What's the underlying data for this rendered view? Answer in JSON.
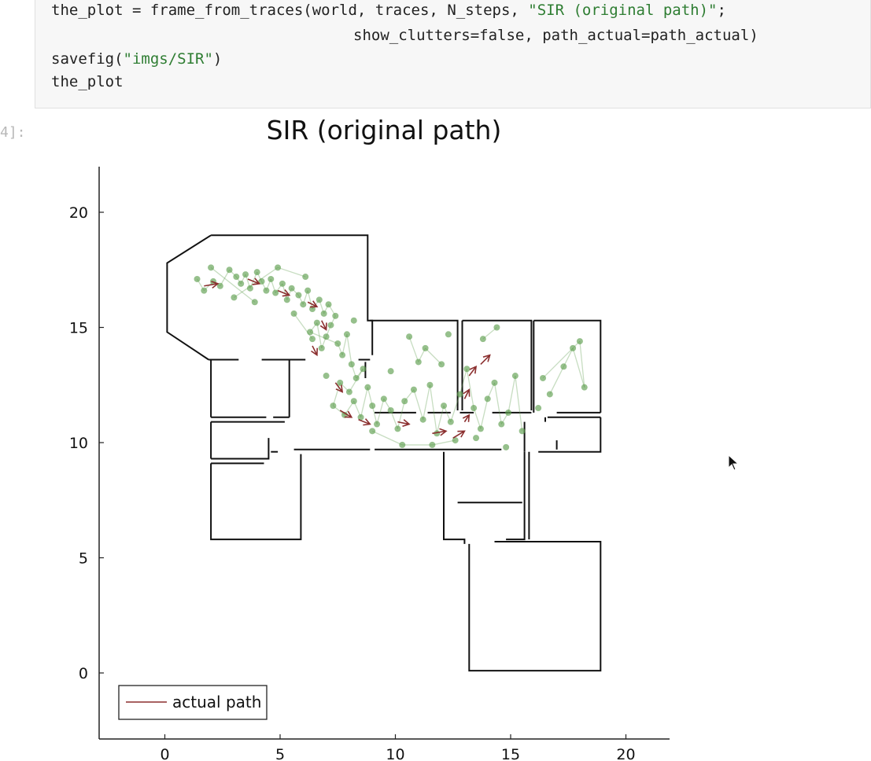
{
  "code": {
    "line1_pre": "the_plot = frame_from_traces(world, traces, N_steps, ",
    "line1_str": "\"SIR (original path)\"",
    "line1_post": ";",
    "line2": "show_clutters=false, path_actual=path_actual)",
    "line3_pre": "savefig(",
    "line3_str": "\"imgs/SIR\"",
    "line3_post": ")",
    "line4": "the_plot"
  },
  "output_prompt": "4]:",
  "colors": {
    "background": "#ffffff",
    "code_bg": "#f7f7f7",
    "string": "#2e7d32",
    "walls": "#111111",
    "particles": "#5e9e4e",
    "path": "#8b2f2f"
  },
  "chart_data": {
    "type": "scatter",
    "title": "SIR (original path)",
    "xlim": [
      -3,
      22
    ],
    "ylim": [
      -2.8,
      22
    ],
    "xticks": [
      "0",
      "5",
      "10",
      "15",
      "20"
    ],
    "yticks": [
      "0",
      "5",
      "10",
      "15",
      "20"
    ],
    "grid": false,
    "legend": {
      "position": "bottom-left",
      "entries": [
        "actual path"
      ]
    },
    "walls": [
      [
        [
          2,
          19
        ],
        [
          8.8,
          19
        ],
        [
          8.8,
          15.3
        ],
        [
          9.0,
          15.3
        ],
        [
          9.0,
          13.8
        ]
      ],
      [
        [
          2,
          19
        ],
        [
          0.1,
          17.8
        ],
        [
          0.1,
          14.8
        ],
        [
          1.9,
          13.6
        ]
      ],
      [
        [
          1.9,
          13.6
        ],
        [
          3.2,
          13.6
        ]
      ],
      [
        [
          4.2,
          13.6
        ],
        [
          6.1,
          13.6
        ]
      ],
      [
        [
          8.4,
          13.6
        ],
        [
          8.9,
          13.6
        ]
      ],
      [
        [
          2,
          13.6
        ],
        [
          2,
          11.1
        ]
      ],
      [
        [
          2,
          11.1
        ],
        [
          4.4,
          11.1
        ]
      ],
      [
        [
          4.7,
          11.1
        ],
        [
          5.4,
          11.1
        ]
      ],
      [
        [
          5.4,
          13.6
        ],
        [
          5.4,
          11.1
        ]
      ],
      [
        [
          2,
          10.9
        ],
        [
          5.2,
          10.9
        ]
      ],
      [
        [
          2,
          10.9
        ],
        [
          2,
          9.3
        ]
      ],
      [
        [
          2,
          9.3
        ],
        [
          4.5,
          9.3
        ],
        [
          4.5,
          10.2
        ]
      ],
      [
        [
          4.6,
          9.6
        ],
        [
          4.9,
          9.6
        ]
      ],
      [
        [
          2,
          9.1
        ],
        [
          2,
          5.8
        ],
        [
          5.9,
          5.8
        ],
        [
          5.9,
          9.5
        ]
      ],
      [
        [
          2,
          9.1
        ],
        [
          4.3,
          9.1
        ]
      ],
      [
        [
          5.6,
          9.7
        ],
        [
          8.9,
          9.7
        ]
      ],
      [
        [
          9.1,
          9.7
        ],
        [
          14.6,
          9.7
        ]
      ],
      [
        [
          8.7,
          13.5
        ],
        [
          8.7,
          12.8
        ]
      ],
      [
        [
          8.9,
          15.3
        ],
        [
          12.7,
          15.3
        ],
        [
          12.7,
          11.4
        ]
      ],
      [
        [
          9.1,
          11.3
        ],
        [
          10.9,
          11.3
        ]
      ],
      [
        [
          11.4,
          11.3
        ],
        [
          12.4,
          11.3
        ]
      ],
      [
        [
          12.9,
          15.3
        ],
        [
          15.9,
          15.3
        ],
        [
          15.9,
          11.4
        ]
      ],
      [
        [
          12.9,
          15.3
        ],
        [
          12.9,
          11.4
        ]
      ],
      [
        [
          12.8,
          11.3
        ],
        [
          13.4,
          11.3
        ]
      ],
      [
        [
          14.2,
          11.3
        ],
        [
          15.9,
          11.3
        ]
      ],
      [
        [
          16.0,
          15.3
        ],
        [
          18.9,
          15.3
        ],
        [
          18.9,
          11.3
        ]
      ],
      [
        [
          16.0,
          15.3
        ],
        [
          16.0,
          11.3
        ]
      ],
      [
        [
          17.0,
          11.3
        ],
        [
          18.9,
          11.3
        ]
      ],
      [
        [
          16.6,
          11.1
        ],
        [
          18.9,
          11.1
        ]
      ],
      [
        [
          16.5,
          11.1
        ],
        [
          16.5,
          10.9
        ]
      ],
      [
        [
          15.6,
          10.9
        ],
        [
          15.6,
          9.6
        ]
      ],
      [
        [
          12.1,
          9.6
        ],
        [
          12.1,
          5.8
        ],
        [
          13.0,
          5.8
        ],
        [
          13.0,
          5.6
        ]
      ],
      [
        [
          12.7,
          7.4
        ],
        [
          15.5,
          7.4
        ]
      ],
      [
        [
          15.6,
          9.6
        ],
        [
          15.6,
          5.8
        ],
        [
          14.8,
          5.8
        ]
      ],
      [
        [
          15.8,
          9.6
        ],
        [
          15.8,
          5.8
        ]
      ],
      [
        [
          14.3,
          5.7
        ],
        [
          18.9,
          5.7
        ],
        [
          18.9,
          0.1
        ],
        [
          13.2,
          0.1
        ],
        [
          13.2,
          5.6
        ]
      ],
      [
        [
          16.2,
          9.6
        ],
        [
          18.9,
          9.6
        ],
        [
          18.9,
          11.1
        ]
      ],
      [
        [
          17.0,
          10.1
        ],
        [
          17.0,
          9.7
        ]
      ]
    ],
    "particles": [
      [
        1.4,
        17.1
      ],
      [
        1.7,
        16.6
      ],
      [
        2.1,
        17.0
      ],
      [
        2.4,
        16.8
      ],
      [
        2.8,
        17.5
      ],
      [
        3.1,
        17.2
      ],
      [
        3.3,
        16.9
      ],
      [
        3.5,
        17.3
      ],
      [
        3.7,
        16.7
      ],
      [
        4.0,
        17.4
      ],
      [
        4.2,
        17.0
      ],
      [
        4.4,
        16.6
      ],
      [
        4.6,
        17.1
      ],
      [
        4.8,
        16.5
      ],
      [
        5.1,
        16.9
      ],
      [
        5.3,
        16.2
      ],
      [
        5.5,
        16.7
      ],
      [
        5.8,
        16.4
      ],
      [
        6.0,
        16.0
      ],
      [
        6.2,
        16.6
      ],
      [
        6.4,
        15.8
      ],
      [
        6.7,
        16.2
      ],
      [
        6.9,
        15.6
      ],
      [
        7.1,
        16.0
      ],
      [
        7.4,
        15.5
      ],
      [
        7.2,
        15.1
      ],
      [
        7.0,
        14.6
      ],
      [
        6.8,
        14.1
      ],
      [
        6.6,
        15.2
      ],
      [
        6.3,
        14.8
      ],
      [
        7.5,
        14.3
      ],
      [
        7.7,
        13.8
      ],
      [
        7.9,
        14.7
      ],
      [
        8.1,
        13.4
      ],
      [
        8.3,
        12.8
      ],
      [
        8.6,
        13.2
      ],
      [
        8.0,
        12.2
      ],
      [
        7.6,
        12.6
      ],
      [
        7.3,
        11.6
      ],
      [
        7.8,
        11.2
      ],
      [
        8.2,
        11.8
      ],
      [
        8.5,
        11.1
      ],
      [
        8.8,
        12.4
      ],
      [
        9.0,
        11.6
      ],
      [
        9.2,
        10.8
      ],
      [
        9.5,
        11.9
      ],
      [
        9.8,
        11.4
      ],
      [
        10.1,
        10.6
      ],
      [
        10.4,
        11.8
      ],
      [
        10.8,
        12.3
      ],
      [
        11.2,
        11.0
      ],
      [
        11.5,
        12.5
      ],
      [
        11.8,
        10.4
      ],
      [
        12.1,
        11.6
      ],
      [
        12.4,
        10.9
      ],
      [
        12.8,
        12.1
      ],
      [
        13.1,
        13.2
      ],
      [
        13.4,
        11.5
      ],
      [
        13.7,
        10.6
      ],
      [
        14.0,
        11.9
      ],
      [
        14.3,
        12.6
      ],
      [
        14.6,
        10.8
      ],
      [
        14.9,
        11.3
      ],
      [
        15.2,
        12.9
      ],
      [
        15.5,
        10.5
      ],
      [
        12.0,
        13.4
      ],
      [
        11.3,
        14.1
      ],
      [
        11.0,
        13.5
      ],
      [
        10.6,
        14.6
      ],
      [
        13.8,
        14.5
      ],
      [
        14.4,
        15.0
      ],
      [
        16.7,
        12.1
      ],
      [
        17.3,
        13.3
      ],
      [
        17.7,
        14.1
      ],
      [
        18.2,
        12.4
      ],
      [
        18.0,
        14.4
      ],
      [
        16.4,
        12.8
      ],
      [
        3.0,
        16.3
      ],
      [
        4.9,
        17.6
      ],
      [
        6.1,
        17.2
      ],
      [
        8.2,
        15.3
      ],
      [
        9.0,
        10.5
      ],
      [
        10.3,
        9.9
      ],
      [
        11.6,
        9.9
      ],
      [
        12.6,
        10.1
      ],
      [
        6.4,
        14.5
      ],
      [
        5.6,
        15.6
      ],
      [
        2.0,
        17.6
      ],
      [
        3.9,
        16.1
      ],
      [
        7.0,
        12.9
      ],
      [
        14.8,
        9.8
      ],
      [
        12.3,
        14.7
      ],
      [
        9.8,
        13.1
      ],
      [
        16.2,
        11.5
      ],
      [
        13.5,
        10.2
      ]
    ],
    "path_arrows": [
      [
        1.7,
        16.8,
        2.3,
        16.9
      ],
      [
        3.6,
        17.1,
        4.1,
        16.9
      ],
      [
        4.9,
        16.6,
        5.4,
        16.4
      ],
      [
        6.2,
        16.1,
        6.6,
        15.9
      ],
      [
        6.8,
        15.3,
        7.0,
        14.9
      ],
      [
        6.4,
        14.2,
        6.6,
        13.8
      ],
      [
        7.4,
        12.6,
        7.7,
        12.2
      ],
      [
        7.6,
        11.4,
        8.1,
        11.1
      ],
      [
        8.4,
        11.0,
        8.9,
        10.8
      ],
      [
        10.1,
        10.9,
        10.6,
        10.8
      ],
      [
        11.6,
        10.4,
        12.2,
        10.5
      ],
      [
        12.5,
        10.2,
        13.0,
        10.5
      ],
      [
        13.0,
        10.9,
        13.2,
        11.2
      ],
      [
        13.0,
        11.9,
        13.2,
        12.3
      ],
      [
        13.2,
        12.9,
        13.5,
        13.3
      ],
      [
        13.7,
        13.4,
        14.1,
        13.8
      ]
    ]
  }
}
